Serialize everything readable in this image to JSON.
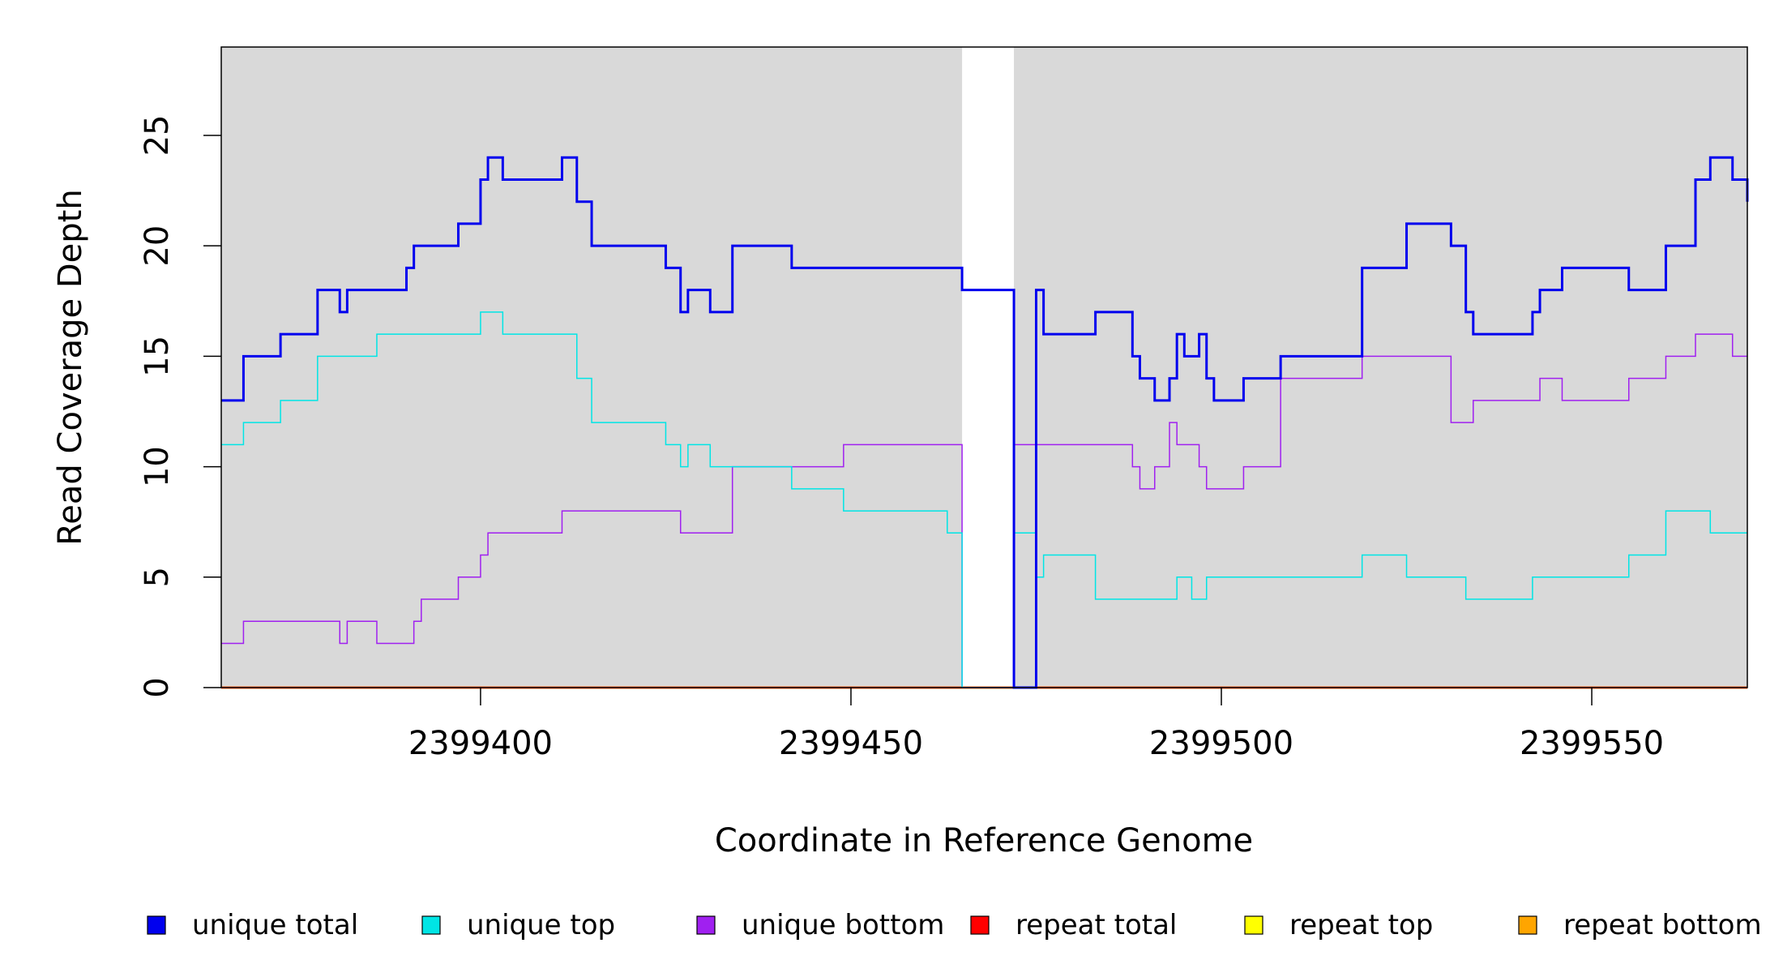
{
  "chart_data": {
    "type": "line",
    "xlabel": "Coordinate in Reference Genome",
    "ylabel": "Read Coverage Depth",
    "xlim": [
      2399365,
      2399571
    ],
    "ylim": [
      0,
      29
    ],
    "xticks": [
      "2399400",
      "2399450",
      "2399500",
      "2399550"
    ],
    "xtick_values": [
      2399400,
      2399450,
      2399500,
      2399550
    ],
    "yticks": [
      "0",
      "5",
      "10",
      "15",
      "20",
      "25"
    ],
    "ytick_values": [
      0,
      5,
      10,
      15,
      20,
      25
    ],
    "gap": [
      2399465,
      2399472
    ],
    "background": "#d9d9d9",
    "legend_position": "bottom",
    "series": [
      {
        "name": "unique total",
        "color": "#0000ee",
        "x": [
          2399365,
          2399368,
          2399373,
          2399378,
          2399381,
          2399382,
          2399390,
          2399391,
          2399397,
          2399400,
          2399401,
          2399403,
          2399411,
          2399413,
          2399415,
          2399425,
          2399427,
          2399428,
          2399431,
          2399434,
          2399442,
          2399463,
          2399465,
          2399472,
          2399475,
          2399476,
          2399483,
          2399488,
          2399489,
          2399491,
          2399493,
          2399494,
          2399495,
          2399497,
          2399498,
          2399499,
          2399503,
          2399508,
          2399519,
          2399525,
          2399531,
          2399533,
          2399534,
          2399542,
          2399543,
          2399546,
          2399555,
          2399560,
          2399564,
          2399566,
          2399569,
          2399571
        ],
        "y": [
          13,
          15,
          16,
          18,
          17,
          18,
          19,
          20,
          21,
          23,
          24,
          23,
          24,
          22,
          20,
          19,
          17,
          18,
          17,
          20,
          19,
          19,
          18,
          0,
          18,
          16,
          17,
          15,
          14,
          13,
          14,
          16,
          15,
          16,
          14,
          13,
          14,
          15,
          19,
          21,
          20,
          17,
          16,
          17,
          18,
          19,
          18,
          20,
          23,
          24,
          23,
          22
        ]
      },
      {
        "name": "unique top",
        "color": "#00e5e5",
        "x": [
          2399365,
          2399368,
          2399373,
          2399378,
          2399386,
          2399400,
          2399403,
          2399413,
          2399415,
          2399425,
          2399427,
          2399428,
          2399431,
          2399434,
          2399442,
          2399449,
          2399463,
          2399465,
          2399472,
          2399475,
          2399476,
          2399483,
          2399494,
          2399496,
          2399498,
          2399519,
          2399525,
          2399533,
          2399542,
          2399555,
          2399560,
          2399566,
          2399571
        ],
        "y": [
          11,
          12,
          13,
          15,
          16,
          17,
          16,
          14,
          12,
          11,
          10,
          11,
          10,
          10,
          9,
          8,
          7,
          0,
          7,
          5,
          6,
          4,
          5,
          4,
          5,
          6,
          5,
          4,
          5,
          6,
          8,
          7,
          7
        ]
      },
      {
        "name": "unique bottom",
        "color": "#a020f0",
        "x": [
          2399365,
          2399368,
          2399381,
          2399382,
          2399386,
          2399391,
          2399392,
          2399397,
          2399400,
          2399401,
          2399411,
          2399427,
          2399434,
          2399449,
          2399465,
          2399472,
          2399488,
          2399489,
          2399491,
          2399493,
          2399494,
          2399495,
          2399497,
          2399498,
          2399503,
          2399508,
          2399519,
          2399525,
          2399531,
          2399534,
          2399543,
          2399546,
          2399555,
          2399560,
          2399564,
          2399569,
          2399571
        ],
        "y": [
          2,
          3,
          2,
          3,
          2,
          3,
          4,
          5,
          6,
          7,
          8,
          7,
          10,
          11,
          0,
          11,
          10,
          9,
          10,
          12,
          11,
          11,
          10,
          9,
          10,
          14,
          15,
          15,
          12,
          13,
          14,
          13,
          14,
          15,
          16,
          15,
          15
        ]
      },
      {
        "name": "repeat total",
        "color": "#ff0000",
        "x": [
          2399365,
          2399571
        ],
        "y": [
          0,
          0
        ]
      },
      {
        "name": "repeat top",
        "color": "#ffff00",
        "x": [
          2399365,
          2399571
        ],
        "y": [
          0,
          0
        ]
      },
      {
        "name": "repeat bottom",
        "color": "#ffa500",
        "x": [
          2399365,
          2399571
        ],
        "y": [
          0,
          0
        ]
      }
    ]
  }
}
